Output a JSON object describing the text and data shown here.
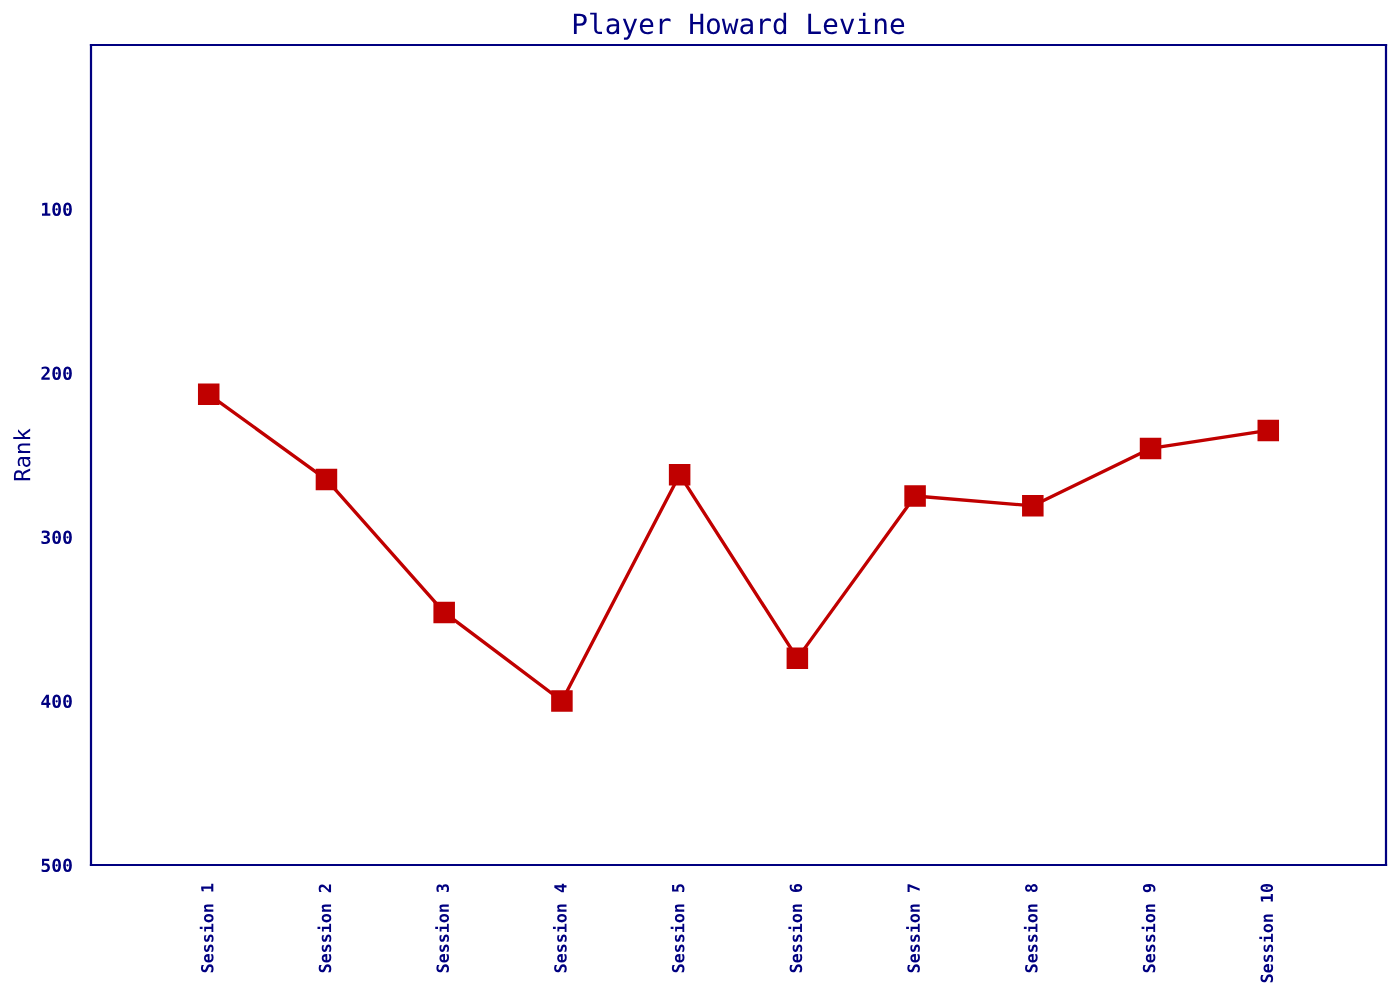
{
  "chart_data": {
    "type": "line",
    "title": "Player Howard Levine",
    "ylabel": "Rank",
    "categories": [
      "Session 1",
      "Session 2",
      "Session 3",
      "Session 4",
      "Session 5",
      "Session 6",
      "Session 7",
      "Session 8",
      "Session 9",
      "Session 10"
    ],
    "series": [
      {
        "color": "#c00000",
        "values": [
          213,
          265,
          346,
          400,
          262,
          374,
          275,
          281,
          246,
          235
        ]
      }
    ],
    "ylim": [
      500,
      0
    ],
    "yticks": [
      100,
      200,
      300,
      400,
      500
    ],
    "marker": "square",
    "line_style": "solid",
    "grid": false,
    "legend": false
  }
}
